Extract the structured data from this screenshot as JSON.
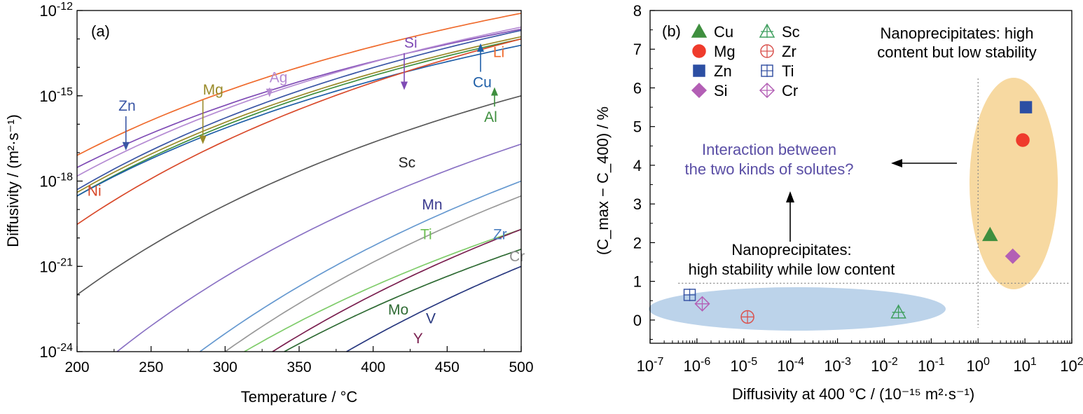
{
  "chart_data": [
    {
      "type": "line",
      "panel_label": "(a)",
      "xlabel": "Temperature / °C",
      "ylabel": "Diffusivity / (m²·s⁻¹)",
      "y_scale": "log",
      "xlim": [
        200,
        500
      ],
      "ylim": [
        1e-24,
        1e-12
      ],
      "x_ticks": [
        200,
        250,
        300,
        350,
        400,
        450,
        500
      ],
      "y_ticks": [
        {
          "value": 1e-24,
          "base": "10",
          "exp": "-24"
        },
        {
          "value": 1e-21,
          "base": "10",
          "exp": "-21"
        },
        {
          "value": 1e-18,
          "base": "10",
          "exp": "-18"
        },
        {
          "value": 1e-15,
          "base": "10",
          "exp": "-15"
        },
        {
          "value": 1e-12,
          "base": "10",
          "exp": "-12"
        }
      ],
      "grid": false,
      "series": [
        {
          "name": "Li",
          "color": "#ef6a2c",
          "x": [
            200,
            500
          ],
          "y": [
            8e-18,
            8e-13
          ]
        },
        {
          "name": "Si",
          "color": "#7f4bb5",
          "x": [
            200,
            500
          ],
          "y": [
            3e-18,
            2.2e-13
          ]
        },
        {
          "name": "Ag",
          "color": "#b58bd3",
          "x": [
            200,
            500
          ],
          "y": [
            1.5e-18,
            2.6e-13
          ]
        },
        {
          "name": "Zn",
          "color": "#3a56a5",
          "x": [
            200,
            500
          ],
          "y": [
            5e-19,
            2e-13
          ]
        },
        {
          "name": "Mg",
          "color": "#9a8b2a",
          "x": [
            200,
            500
          ],
          "y": [
            4e-19,
            1.2e-13
          ]
        },
        {
          "name": "Al",
          "color": "#3f8f3f",
          "x": [
            200,
            500
          ],
          "y": [
            3e-19,
            1e-13
          ]
        },
        {
          "name": "Cu",
          "color": "#1f5fa8",
          "x": [
            200,
            500
          ],
          "y": [
            3e-19,
            6e-14
          ]
        },
        {
          "name": "Ni",
          "color": "#d94a2b",
          "x": [
            200,
            500
          ],
          "y": [
            3e-20,
            1e-13
          ]
        },
        {
          "name": "Sc",
          "color": "#595959",
          "x": [
            200,
            500
          ],
          "y": [
            1e-22,
            1e-15
          ]
        },
        {
          "name": "Mn",
          "color": "#8a72c4",
          "x": [
            227,
            500
          ],
          "y": [
            1e-24,
            2e-17
          ]
        },
        {
          "name": "Zr",
          "color": "#6699d0",
          "x": [
            283,
            500
          ],
          "y": [
            1e-24,
            1e-18
          ]
        },
        {
          "name": "Cr",
          "color": "#999999",
          "x": [
            300,
            500
          ],
          "y": [
            1e-24,
            3e-19
          ]
        },
        {
          "name": "Ti",
          "color": "#7fcc6a",
          "x": [
            313,
            500
          ],
          "y": [
            1e-24,
            2e-20
          ]
        },
        {
          "name": "Y",
          "color": "#7a1f4f",
          "x": [
            332,
            500
          ],
          "y": [
            1e-24,
            2e-20
          ]
        },
        {
          "name": "Mo",
          "color": "#2f6b34",
          "x": [
            340,
            500
          ],
          "y": [
            1e-24,
            4e-21
          ]
        },
        {
          "name": "V",
          "color": "#28387f",
          "x": [
            382,
            500
          ],
          "y": [
            1e-24,
            1e-21
          ]
        }
      ],
      "labels": [
        {
          "text": "Li",
          "color": "#ef6a2c",
          "at": [
            481,
            2.3e-14
          ]
        },
        {
          "text": "Si",
          "color": "#7f4bb5",
          "at": [
            421,
            5e-14
          ],
          "arrow_to": [
            421,
            1.6e-15
          ]
        },
        {
          "text": "Ag",
          "color": "#b58bd3",
          "at": [
            330,
            3e-15
          ],
          "arrow_to": [
            330,
            9e-16
          ]
        },
        {
          "text": "Mg",
          "color": "#9a8b2a",
          "at": [
            285,
            1.1e-15
          ],
          "arrow_to": [
            285,
            2e-17
          ]
        },
        {
          "text": "Zn",
          "color": "#3a56a5",
          "at": [
            228,
            3e-16
          ],
          "arrow_to": [
            233,
            1.2e-17
          ]
        },
        {
          "text": "Al",
          "color": "#3f8f3f",
          "at": [
            475,
            1.2e-16
          ],
          "arrow_to": [
            482,
            2e-15
          ]
        },
        {
          "text": "Cu",
          "color": "#1f5fa8",
          "at": [
            675,
            2e-15
          ],
          "arrow_to": [
            686,
            7e-14
          ]
        },
        {
          "text": "Ni",
          "color": "#d94a2b",
          "at": [
            207,
            3e-19
          ]
        },
        {
          "text": "Sc",
          "color": "#222222",
          "at": [
            417,
            3e-18
          ]
        },
        {
          "text": "Mn",
          "color": "#3a3a8f",
          "at": [
            433,
            1e-19
          ]
        },
        {
          "text": "Zr",
          "color": "#4b7fc0",
          "at": [
            481,
            9e-21
          ]
        },
        {
          "text": "Cr",
          "color": "#8f8f8f",
          "at": [
            492,
            1.5e-21
          ]
        },
        {
          "text": "Ti",
          "color": "#6cbf52",
          "at": [
            600,
            9e-21
          ]
        },
        {
          "text": "Mo",
          "color": "#2f6b34",
          "at": [
            554,
            2e-23
          ]
        },
        {
          "text": "V",
          "color": "#28387f",
          "at": [
            608,
            1e-23
          ]
        },
        {
          "text": "Y",
          "color": "#7a1f4f",
          "at": [
            427,
            2e-24
          ]
        }
      ]
    },
    {
      "type": "scatter",
      "panel_label": "(b)",
      "xlabel": "Diffusivity at 400 °C / (10⁻¹⁵ m²·s⁻¹)",
      "ylabel": "(C_max − C_400) / %",
      "x_scale": "log",
      "xlim": [
        1e-07,
        100.0
      ],
      "ylim": [
        -0.6,
        8
      ],
      "x_ticks": [
        {
          "value": 1e-07,
          "base": "10",
          "exp": "-7"
        },
        {
          "value": 1e-06,
          "base": "10",
          "exp": "-6"
        },
        {
          "value": 1e-05,
          "base": "10",
          "exp": "-5"
        },
        {
          "value": 0.0001,
          "base": "10",
          "exp": "-4"
        },
        {
          "value": 0.001,
          "base": "10",
          "exp": "-3"
        },
        {
          "value": 0.01,
          "base": "10",
          "exp": "-2"
        },
        {
          "value": 0.1,
          "base": "10",
          "exp": "-1"
        },
        {
          "value": 1,
          "base": "10",
          "exp": "0"
        },
        {
          "value": 10,
          "base": "10",
          "exp": "1"
        },
        {
          "value": 100,
          "base": "10",
          "exp": "2"
        }
      ],
      "y_ticks": [
        0,
        1,
        2,
        3,
        4,
        5,
        6,
        7,
        8
      ],
      "reference_lines": {
        "x": 1,
        "y": 0.95,
        "style": "dotted"
      },
      "points": [
        {
          "name": "Cu",
          "x": 1.8,
          "y": 2.2,
          "marker": "triangle-filled",
          "color": "#3f8f3f"
        },
        {
          "name": "Mg",
          "x": 9.0,
          "y": 4.65,
          "marker": "circle-filled",
          "color": "#ef3b2c"
        },
        {
          "name": "Zn",
          "x": 10.5,
          "y": 5.5,
          "marker": "square-filled",
          "color": "#2c4fa3"
        },
        {
          "name": "Si",
          "x": 5.5,
          "y": 1.65,
          "marker": "diamond-filled",
          "color": "#b35fb5"
        },
        {
          "name": "Sc",
          "x": 0.02,
          "y": 0.2,
          "marker": "triangle-cross",
          "color": "#3f9f5f"
        },
        {
          "name": "Zr",
          "x": 1.2e-05,
          "y": 0.08,
          "marker": "circle-cross",
          "color": "#d9534f"
        },
        {
          "name": "Ti",
          "x": 7e-07,
          "y": 0.65,
          "marker": "square-cross",
          "color": "#3a56a5"
        },
        {
          "name": "Cr",
          "x": 1.3e-06,
          "y": 0.42,
          "marker": "diamond-cross",
          "color": "#b35fb5"
        }
      ],
      "legend": {
        "position": "top-left",
        "entries": [
          "Cu",
          "Mg",
          "Zn",
          "Si",
          "Sc",
          "Zr",
          "Ti",
          "Cr"
        ]
      },
      "annotations": {
        "top_right": [
          "Nanoprecipitates: high",
          "content but low stability"
        ],
        "middle": [
          "Interaction between",
          "the two kinds of solutes?"
        ],
        "bottom": [
          "Nanoprecipitates:",
          "high stability while low content"
        ]
      },
      "colors": {
        "ellipse_high_content": "#f7d9a1",
        "ellipse_high_stability": "#bcd3ea",
        "interaction_text": "#5a4ea5"
      }
    }
  ]
}
